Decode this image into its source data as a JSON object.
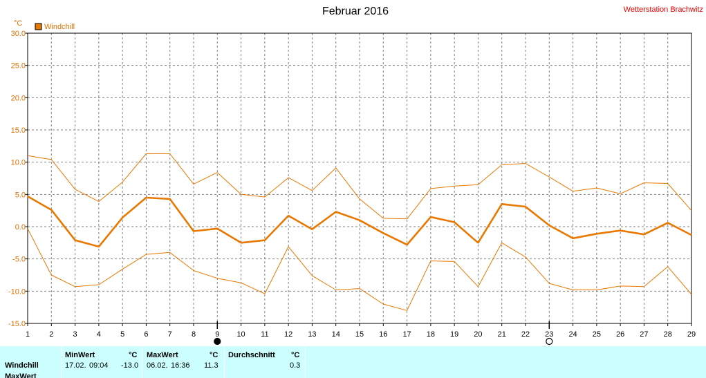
{
  "header": {
    "title": "Februar 2016",
    "station": "Wetterstation Brachwitz",
    "unit": "°C",
    "legend": "Windchill"
  },
  "colors": {
    "series": "#e87800",
    "axis_text": "#e07000",
    "station": "#e00000",
    "stats_bg": "#ccffff"
  },
  "chart_data": {
    "type": "line",
    "title": "Februar 2016",
    "ylabel": "°C",
    "ylim": [
      -15,
      30
    ],
    "yticks": [
      "30.0",
      "25.0",
      "20.0",
      "15.0",
      "10.0",
      "5.0",
      "0.0",
      "-5.0",
      "-10.0",
      "-15.0"
    ],
    "x": [
      1,
      2,
      3,
      4,
      5,
      6,
      7,
      8,
      9,
      10,
      11,
      12,
      13,
      14,
      15,
      16,
      17,
      18,
      19,
      20,
      21,
      22,
      23,
      24,
      25,
      26,
      27,
      28,
      29
    ],
    "grid": true,
    "legend": "top-left",
    "markers": {
      "full_moon_day": 9,
      "new_moon_day": 23
    },
    "series": [
      {
        "name": "Windchill",
        "role": "avg",
        "values": [
          4.7,
          2.6,
          -2.1,
          -3.1,
          1.4,
          4.5,
          4.3,
          -0.7,
          -0.3,
          -2.5,
          -2.1,
          1.7,
          -0.4,
          2.3,
          1.0,
          -1.0,
          -2.8,
          1.5,
          0.7,
          -2.5,
          3.5,
          3.1,
          0.2,
          -1.8,
          -1.1,
          -0.6,
          -1.2,
          0.6,
          -1.3
        ]
      },
      {
        "role": "max",
        "values": [
          11.0,
          10.4,
          5.8,
          3.9,
          6.9,
          11.3,
          11.3,
          6.6,
          8.4,
          5.0,
          4.6,
          7.6,
          5.6,
          9.1,
          4.3,
          1.3,
          1.2,
          5.9,
          6.3,
          6.5,
          9.6,
          9.8,
          7.7,
          5.5,
          6.0,
          5.1,
          6.8,
          6.7,
          2.5
        ]
      },
      {
        "role": "min",
        "values": [
          -0.3,
          -7.5,
          -9.3,
          -9.0,
          -6.6,
          -4.3,
          -4.0,
          -6.8,
          -8.0,
          -8.7,
          -10.4,
          -3.1,
          -7.6,
          -9.8,
          -9.6,
          -12.0,
          -13.0,
          -5.3,
          -5.4,
          -9.3,
          -2.5,
          -4.7,
          -8.8,
          -9.8,
          -9.8,
          -9.2,
          -9.3,
          -6.2,
          -10.5
        ]
      }
    ]
  },
  "stats": {
    "row_label": "Windchill",
    "row_label_2": "MaxWert",
    "min_header": "MinWert",
    "min_unit": "°C",
    "min_date": "17.02.",
    "min_time": "09:04",
    "min_value": "-13.0",
    "max_header": "MaxWert",
    "max_unit": "°C",
    "max_date": "06.02.",
    "max_time": "16:36",
    "max_value": "11.3",
    "avg_header": "Durchschnitt",
    "avg_unit": "°C",
    "avg_value": "0.3"
  }
}
